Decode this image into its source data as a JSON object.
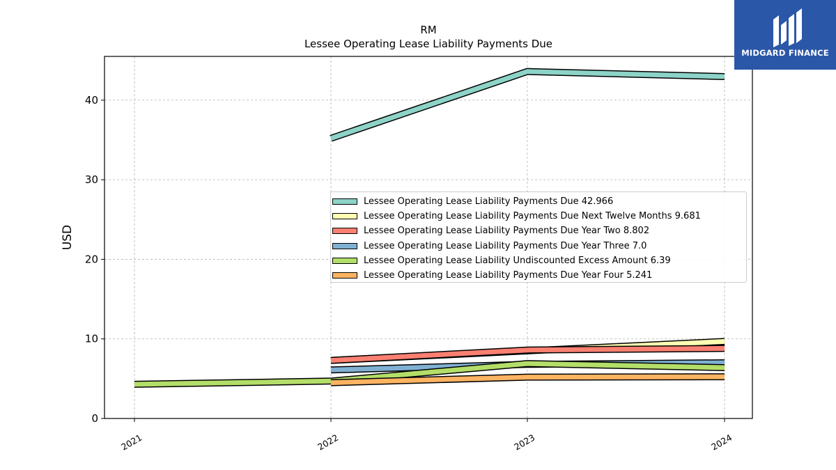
{
  "brand": {
    "name": "MIDGARD FINANCE",
    "color": "#2b57a8"
  },
  "chart_data": {
    "type": "line",
    "title": "RM",
    "subtitle": "Lessee Operating Lease Liability Payments Due",
    "xlabel": "",
    "ylabel": "USD",
    "x": [
      "2021",
      "2022",
      "2023",
      "2024"
    ],
    "ylim": [
      0,
      45.5
    ],
    "yticks": [
      0,
      10,
      20,
      30,
      40
    ],
    "grid": true,
    "legend_position": "center-right",
    "series": [
      {
        "name": "Lessee Operating Lease Liability Payments Due",
        "legend_value": "42.966",
        "color": "#8dd3c7",
        "values": [
          null,
          35.2,
          43.6,
          42.966
        ]
      },
      {
        "name": "Lessee Operating Lease Liability Payments Due Next Twelve Months",
        "legend_value": "9.681",
        "color": "#ffffb3",
        "values": [
          null,
          7.3,
          8.5,
          9.681
        ]
      },
      {
        "name": "Lessee Operating Lease Liability Payments Due Year Two",
        "legend_value": "8.802",
        "color": "#fb8072",
        "values": [
          null,
          7.3,
          8.6,
          8.802
        ]
      },
      {
        "name": "Lessee Operating Lease Liability Payments Due Year Three",
        "legend_value": "7.0",
        "color": "#80b1d3",
        "values": [
          null,
          6.1,
          6.8,
          7.0
        ]
      },
      {
        "name": "Lessee Operating Lease Liability Undiscounted Excess Amount",
        "legend_value": "6.39",
        "color": "#b3de69",
        "values": [
          4.3,
          4.7,
          6.9,
          6.39
        ]
      },
      {
        "name": "Lessee Operating Lease Liability Payments Due Year Four",
        "legend_value": "5.241",
        "color": "#fdb462",
        "values": [
          null,
          4.5,
          5.2,
          5.241
        ]
      }
    ]
  }
}
